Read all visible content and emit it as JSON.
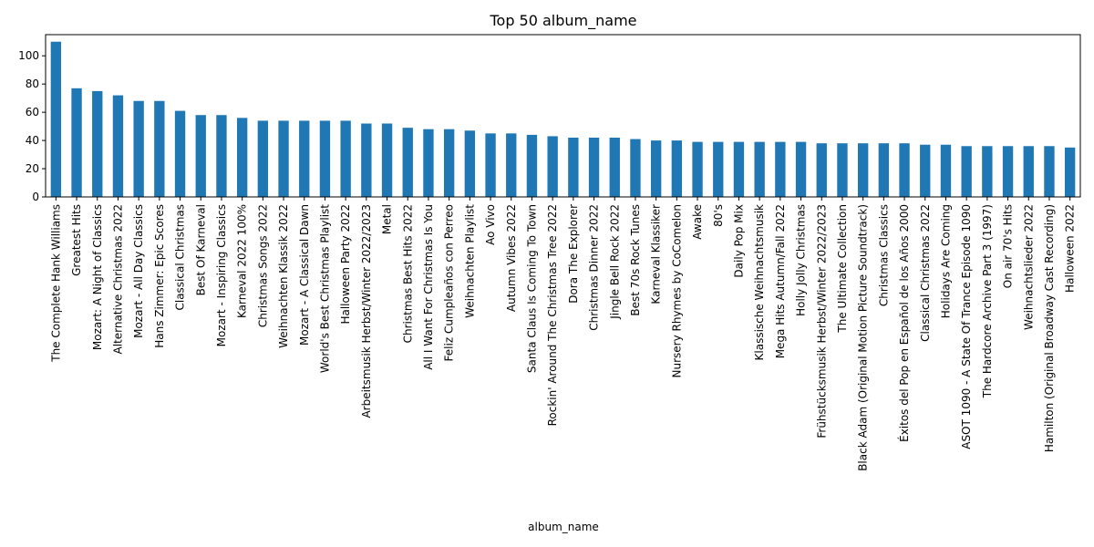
{
  "chart_data": {
    "type": "bar",
    "title": "Top 50 album_name",
    "xlabel": "album_name",
    "ylabel": "",
    "ylim": [
      0,
      115
    ],
    "yticks": [
      0,
      20,
      40,
      60,
      80,
      100
    ],
    "bar_color": "#1f77b4",
    "grid": false,
    "legend": "none",
    "categories": [
      "The Complete Hank Williams",
      "Greatest Hits",
      "Mozart: A Night of Classics",
      "Alternative Christmas 2022",
      "Mozart - All Day Classics",
      "Hans Zimmer: Epic Scores",
      "Classical Christmas",
      "Best Of Karneval",
      "Mozart - Inspiring Classics",
      "Karneval 2022 100%",
      "Christmas Songs 2022",
      "Weihnachten Klassik 2022",
      "Mozart - A Classical Dawn",
      "World's Best Christmas Playlist",
      "Halloween Party 2022",
      "Arbeitsmusik Herbst/Winter 2022/2023",
      "Metal",
      "Christmas Best Hits 2022",
      "All I Want For Christmas Is You",
      "Feliz Cumpleaños con Perreo",
      "Weihnachten Playlist",
      "Ao Vivo",
      "Autumn Vibes 2022",
      "Santa Claus Is Coming To Town",
      "Rockin' Around The Christmas Tree 2022",
      "Dora The Explorer",
      "Christmas Dinner 2022",
      "Jingle Bell Rock 2022",
      "Best 70s Rock Tunes",
      "Karneval Klassiker",
      "Nursery Rhymes by CoComelon",
      "Awake",
      "80's",
      "Daily Pop Mix",
      "Klassische Weihnachtsmusik",
      "Mega Hits Autumn/Fall 2022",
      "Holly Jolly Christmas",
      "Frühstücksmusik Herbst/Winter 2022/2023",
      "The Ultimate Collection",
      "Black Adam (Original Motion Picture Soundtrack)",
      "Christmas Classics",
      "Éxitos del Pop en Español de los Años 2000",
      "Classical Christmas 2022",
      "Holidays Are Coming",
      "ASOT 1090 - A State Of Trance Episode 1090",
      "The Hardcore Archive Part 3 (1997)",
      "On air 70's Hits",
      "Weihnachtslieder 2022",
      "Hamilton (Original Broadway Cast Recording)",
      "Halloween 2022"
    ],
    "values": [
      110,
      77,
      75,
      72,
      68,
      68,
      61,
      58,
      58,
      56,
      54,
      54,
      54,
      54,
      54,
      52,
      52,
      49,
      48,
      48,
      47,
      45,
      45,
      44,
      43,
      42,
      42,
      42,
      41,
      40,
      40,
      39,
      39,
      39,
      39,
      39,
      39,
      38,
      38,
      38,
      38,
      38,
      37,
      37,
      36,
      36,
      36,
      36,
      36,
      35
    ]
  }
}
